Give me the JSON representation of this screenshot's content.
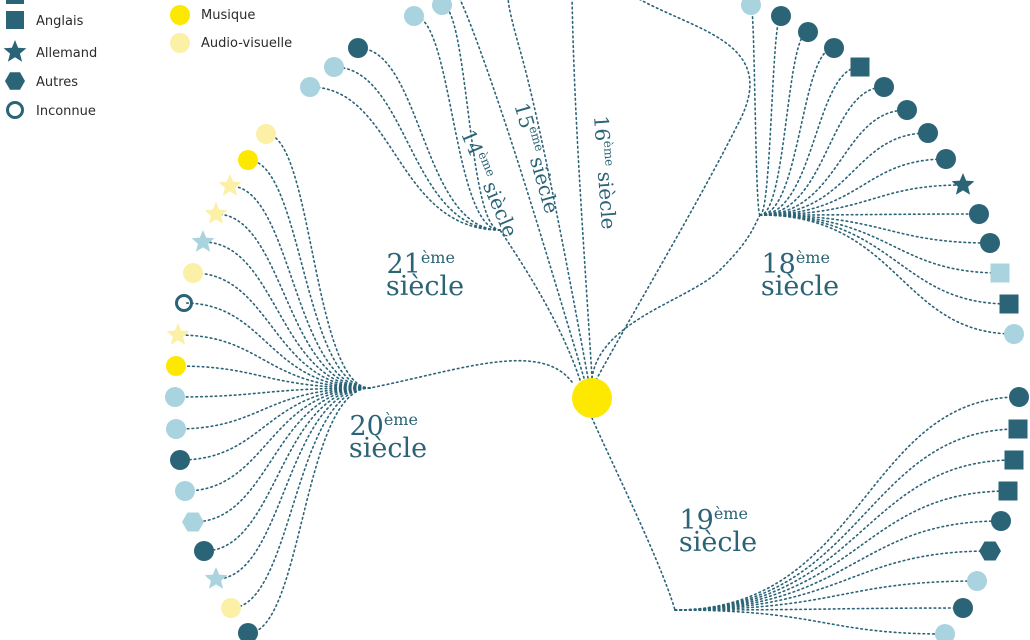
{
  "colors": {
    "dark": "#2b6377",
    "light": "#a9d4df",
    "yellow": "#fde800",
    "pale_yellow": "#fbf0a6",
    "link": "#2b6377"
  },
  "legend": {
    "languages": [
      {
        "label": "Anglais",
        "shape": "square"
      },
      {
        "label": "Allemand",
        "shape": "star"
      },
      {
        "label": "Autres",
        "shape": "hexagon"
      },
      {
        "label": "Inconnue",
        "shape": "ring"
      }
    ],
    "media": [
      {
        "label": "Musique",
        "color": "yellow"
      },
      {
        "label": "Audio-visuelle",
        "color": "pale_yellow"
      }
    ]
  },
  "centuries": [
    {
      "id": "c14",
      "num": "14",
      "sup": "ème",
      "word": "siècle"
    },
    {
      "id": "c15",
      "num": "15",
      "sup": "ème",
      "word": "siècle"
    },
    {
      "id": "c16",
      "num": "16",
      "sup": "ème",
      "word": "siècle"
    },
    {
      "id": "c18",
      "num": "18",
      "sup": "ème",
      "word": "siècle"
    },
    {
      "id": "c19",
      "num": "19",
      "sup": "ème",
      "word": "siècle"
    },
    {
      "id": "c20",
      "num": "20",
      "sup": "ème",
      "word": "siècle"
    },
    {
      "id": "c21",
      "num": "21",
      "sup": "ème",
      "word": "siècle"
    }
  ],
  "leaves": {
    "c18": [
      {
        "shape": "circle",
        "color": "light"
      },
      {
        "shape": "circle",
        "color": "dark"
      },
      {
        "shape": "circle",
        "color": "dark"
      },
      {
        "shape": "circle",
        "color": "dark"
      },
      {
        "shape": "square",
        "color": "dark"
      },
      {
        "shape": "circle",
        "color": "dark"
      },
      {
        "shape": "circle",
        "color": "dark"
      },
      {
        "shape": "circle",
        "color": "dark"
      },
      {
        "shape": "circle",
        "color": "dark"
      },
      {
        "shape": "star",
        "color": "dark"
      },
      {
        "shape": "circle",
        "color": "dark"
      },
      {
        "shape": "circle",
        "color": "dark"
      },
      {
        "shape": "square",
        "color": "light"
      },
      {
        "shape": "square",
        "color": "dark"
      },
      {
        "shape": "circle",
        "color": "light"
      }
    ],
    "c20": [
      {
        "shape": "circle",
        "color": "pale_yellow"
      },
      {
        "shape": "circle",
        "color": "yellow"
      },
      {
        "shape": "star",
        "color": "pale_yellow"
      },
      {
        "shape": "star",
        "color": "pale_yellow"
      },
      {
        "shape": "star",
        "color": "light"
      },
      {
        "shape": "circle",
        "color": "pale_yellow"
      },
      {
        "shape": "ring",
        "color": "dark"
      },
      {
        "shape": "star",
        "color": "pale_yellow"
      },
      {
        "shape": "circle",
        "color": "yellow"
      },
      {
        "shape": "circle",
        "color": "light"
      },
      {
        "shape": "circle",
        "color": "light"
      },
      {
        "shape": "circle",
        "color": "dark"
      },
      {
        "shape": "circle",
        "color": "light"
      },
      {
        "shape": "hexagon",
        "color": "light"
      },
      {
        "shape": "circle",
        "color": "dark"
      },
      {
        "shape": "star",
        "color": "light"
      },
      {
        "shape": "circle",
        "color": "pale_yellow"
      },
      {
        "shape": "circle",
        "color": "dark"
      }
    ],
    "c19": [
      {
        "shape": "circle",
        "color": "dark"
      },
      {
        "shape": "square",
        "color": "dark"
      },
      {
        "shape": "square",
        "color": "dark"
      },
      {
        "shape": "square",
        "color": "dark"
      },
      {
        "shape": "circle",
        "color": "dark"
      },
      {
        "shape": "hexagon",
        "color": "dark"
      },
      {
        "shape": "circle",
        "color": "light"
      },
      {
        "shape": "circle",
        "color": "dark"
      },
      {
        "shape": "circle",
        "color": "light"
      }
    ],
    "c21": [
      {
        "shape": "circle",
        "color": "light"
      },
      {
        "shape": "circle",
        "color": "light"
      },
      {
        "shape": "circle",
        "color": "dark"
      },
      {
        "shape": "circle",
        "color": "light"
      },
      {
        "shape": "circle",
        "color": "light"
      }
    ]
  }
}
